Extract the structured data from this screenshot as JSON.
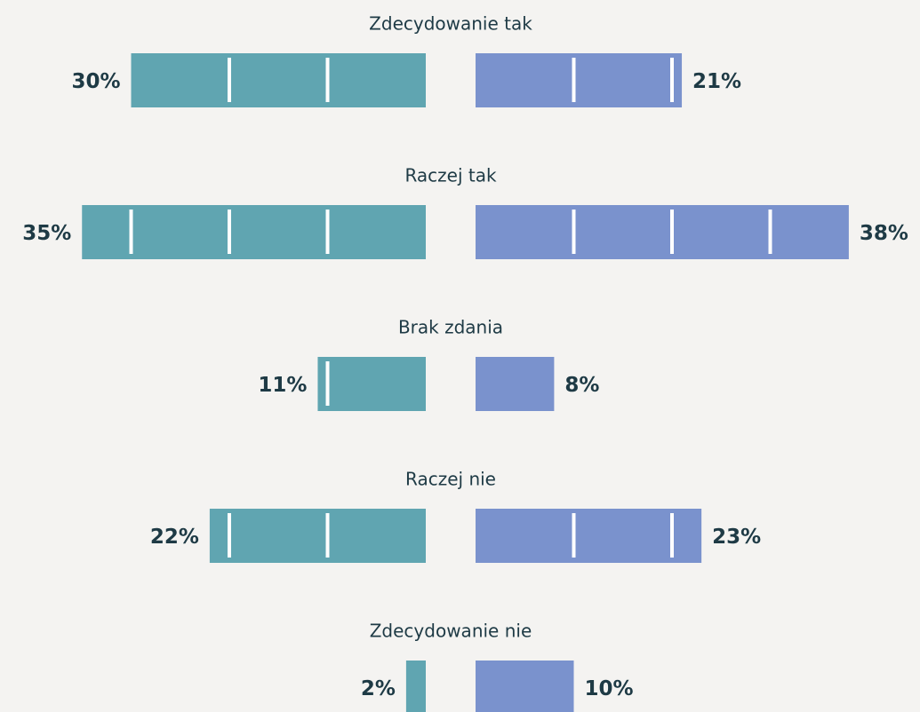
{
  "chart_data": {
    "type": "butterfly-bar",
    "categories": [
      "Zdecydowanie tak",
      "Raczej tak",
      "Brak zdania",
      "Raczej nie",
      "Zdecydowanie nie"
    ],
    "series": [
      {
        "color": "#60a5b1",
        "values": [
          30,
          35,
          11,
          22,
          2
        ],
        "value_labels": [
          "30%",
          "35%",
          "11%",
          "22%",
          "2%"
        ]
      },
      {
        "color": "#7a92cd",
        "values": [
          21,
          38,
          8,
          23,
          10
        ],
        "value_labels": [
          "21%",
          "38%",
          "8%",
          "23%",
          "10%"
        ]
      }
    ],
    "xlim": [
      0,
      40
    ],
    "xticks": [
      10,
      20,
      30
    ]
  }
}
